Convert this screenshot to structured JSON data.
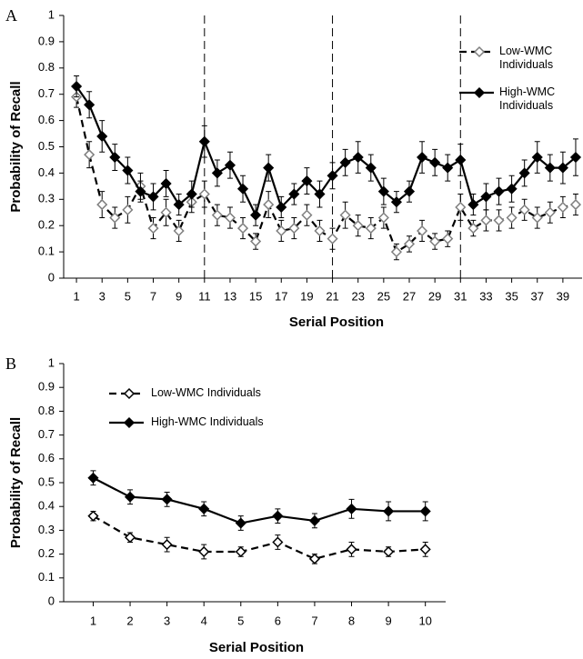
{
  "chart_data": [
    {
      "type": "line",
      "panel": "A",
      "xlabel": "Serial Position",
      "ylabel": "Probability of Recall",
      "x": [
        1,
        2,
        3,
        4,
        5,
        6,
        7,
        8,
        9,
        10,
        11,
        12,
        13,
        14,
        15,
        16,
        17,
        18,
        19,
        20,
        21,
        22,
        23,
        24,
        25,
        26,
        27,
        28,
        29,
        30,
        31,
        32,
        33,
        34,
        35,
        36,
        37,
        38,
        39,
        40
      ],
      "xlim": [
        0,
        40.5
      ],
      "xticks": [
        1,
        3,
        5,
        7,
        9,
        11,
        13,
        15,
        17,
        19,
        21,
        23,
        25,
        27,
        29,
        31,
        33,
        35,
        37,
        39
      ],
      "ylim": [
        0,
        1
      ],
      "yticks": [
        0,
        0.1,
        0.2,
        0.3,
        0.4,
        0.5,
        0.6,
        0.7,
        0.8,
        0.9,
        1
      ],
      "vlines": [
        11,
        21,
        31
      ],
      "legend": "upper right",
      "series": [
        {
          "name": "Low-WMC Individuals",
          "color": "#000000",
          "linestyle": "dashed",
          "marker_fill": "#ffffff",
          "marker_edge": "#7f7f7f",
          "values": [
            0.69,
            0.47,
            0.28,
            0.23,
            0.26,
            0.35,
            0.19,
            0.25,
            0.18,
            0.29,
            0.32,
            0.24,
            0.23,
            0.19,
            0.14,
            0.28,
            0.18,
            0.19,
            0.24,
            0.18,
            0.15,
            0.24,
            0.2,
            0.19,
            0.23,
            0.1,
            0.13,
            0.18,
            0.14,
            0.15,
            0.27,
            0.19,
            0.22,
            0.22,
            0.23,
            0.26,
            0.23,
            0.25,
            0.27,
            0.28
          ],
          "errors": [
            0.04,
            0.05,
            0.05,
            0.04,
            0.05,
            0.05,
            0.04,
            0.05,
            0.04,
            0.04,
            0.05,
            0.04,
            0.04,
            0.04,
            0.03,
            0.05,
            0.04,
            0.04,
            0.04,
            0.04,
            0.04,
            0.05,
            0.04,
            0.04,
            0.04,
            0.03,
            0.03,
            0.04,
            0.03,
            0.03,
            0.05,
            0.03,
            0.04,
            0.04,
            0.04,
            0.04,
            0.04,
            0.04,
            0.04,
            0.04
          ]
        },
        {
          "name": "High-WMC Individuals",
          "color": "#000000",
          "linestyle": "solid",
          "marker_fill": "#000000",
          "marker_edge": "#000000",
          "values": [
            0.73,
            0.66,
            0.54,
            0.46,
            0.41,
            0.33,
            0.31,
            0.36,
            0.28,
            0.32,
            0.52,
            0.4,
            0.43,
            0.34,
            0.24,
            0.42,
            0.27,
            0.32,
            0.37,
            0.32,
            0.39,
            0.44,
            0.46,
            0.42,
            0.33,
            0.29,
            0.33,
            0.46,
            0.44,
            0.42,
            0.45,
            0.28,
            0.31,
            0.33,
            0.34,
            0.4,
            0.46,
            0.42,
            0.42,
            0.46
          ],
          "errors": [
            0.04,
            0.05,
            0.06,
            0.05,
            0.05,
            0.04,
            0.05,
            0.05,
            0.04,
            0.05,
            0.06,
            0.05,
            0.05,
            0.05,
            0.04,
            0.05,
            0.04,
            0.04,
            0.05,
            0.05,
            0.05,
            0.05,
            0.06,
            0.05,
            0.05,
            0.04,
            0.04,
            0.06,
            0.05,
            0.05,
            0.06,
            0.04,
            0.05,
            0.05,
            0.05,
            0.05,
            0.06,
            0.05,
            0.06,
            0.07
          ]
        }
      ]
    },
    {
      "type": "line",
      "panel": "B",
      "xlabel": "Serial Position",
      "ylabel": "Probability of Recall",
      "x": [
        1,
        2,
        3,
        4,
        5,
        6,
        7,
        8,
        9,
        10
      ],
      "xlim": [
        0.2,
        10.55
      ],
      "xticks": [
        1,
        2,
        3,
        4,
        5,
        6,
        7,
        8,
        9,
        10
      ],
      "ylim": [
        0,
        1
      ],
      "yticks": [
        0,
        0.1,
        0.2,
        0.3,
        0.4,
        0.5,
        0.6,
        0.7,
        0.8,
        0.9,
        1
      ],
      "legend": "upper left",
      "series": [
        {
          "name": "Low-WMC Individuals",
          "color": "#000000",
          "linestyle": "dashed",
          "marker_fill": "#ffffff",
          "marker_edge": "#000000",
          "values": [
            0.36,
            0.27,
            0.24,
            0.21,
            0.21,
            0.25,
            0.18,
            0.22,
            0.21,
            0.22
          ],
          "errors": [
            0.02,
            0.02,
            0.03,
            0.03,
            0.02,
            0.03,
            0.02,
            0.03,
            0.02,
            0.03
          ]
        },
        {
          "name": "High-WMC Individuals",
          "color": "#000000",
          "linestyle": "solid",
          "marker_fill": "#000000",
          "marker_edge": "#000000",
          "values": [
            0.52,
            0.44,
            0.43,
            0.39,
            0.33,
            0.36,
            0.34,
            0.39,
            0.38,
            0.38
          ],
          "errors": [
            0.03,
            0.03,
            0.03,
            0.03,
            0.03,
            0.03,
            0.03,
            0.04,
            0.04,
            0.04
          ]
        }
      ]
    }
  ]
}
